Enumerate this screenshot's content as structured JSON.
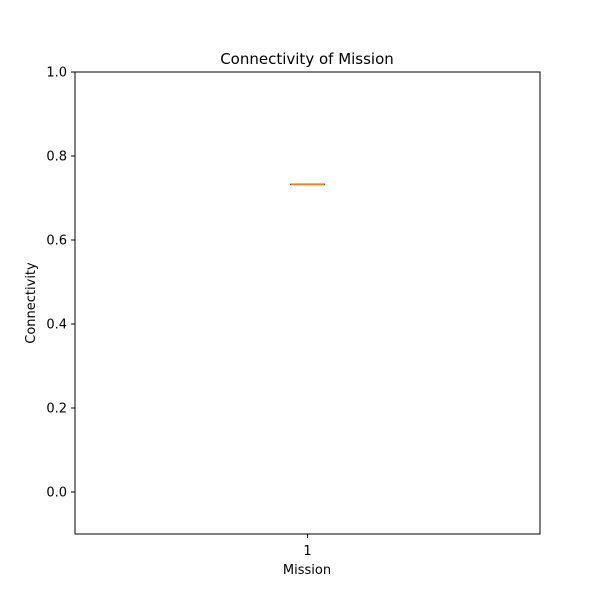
{
  "chart_data": {
    "type": "box",
    "title": "Connectivity of Mission",
    "xlabel": "Mission",
    "ylabel": "Connectivity",
    "ylim": [
      -0.1,
      1.0
    ],
    "y_ticks": [
      "0.0",
      "0.2",
      "0.4",
      "0.6",
      "0.8",
      "1.0"
    ],
    "categories": [
      "1"
    ],
    "boxes": [
      {
        "category": "1",
        "min": 0.733,
        "q1": 0.733,
        "median": 0.733,
        "q3": 0.733,
        "max": 0.733
      }
    ],
    "grid": false,
    "colors": {
      "box": "#000000",
      "median": "#ff7f0e",
      "axes": "#000000"
    }
  }
}
